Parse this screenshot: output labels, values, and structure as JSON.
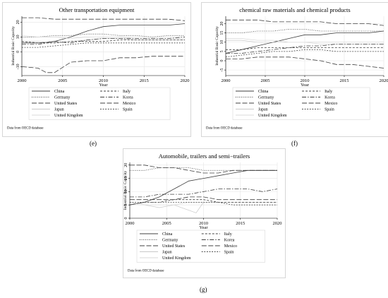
{
  "chart_data": [
    {
      "type": "line",
      "title": "Other transportation equipment",
      "xlabel": "Year",
      "ylabel": "Industrial Basic Capacity",
      "xlim": [
        2000,
        2020
      ],
      "ylim": [
        -16,
        24
      ],
      "xticks": [
        2000,
        2005,
        2010,
        2015,
        2020
      ],
      "yticks": [
        -10,
        0,
        10,
        20
      ],
      "grid": true,
      "legend_position": "bottom",
      "source_note": "Data from OECD database",
      "panel_label": "(e)",
      "series": [
        {
          "name": "China",
          "style": "solid",
          "color": "#404040",
          "x": [
            2000,
            2002,
            2004,
            2006,
            2008,
            2010,
            2012,
            2014,
            2016,
            2018,
            2020
          ],
          "y": [
            6,
            6,
            7,
            10,
            14,
            17,
            18,
            18,
            18,
            18,
            19
          ]
        },
        {
          "name": "Germany",
          "style": "dotted",
          "color": "#404040",
          "x": [
            2000,
            2002,
            2004,
            2006,
            2008,
            2010,
            2012,
            2014,
            2016,
            2018,
            2020
          ],
          "y": [
            10,
            10,
            11,
            11,
            12,
            12,
            11,
            11,
            10,
            11,
            11
          ]
        },
        {
          "name": "United States",
          "style": "longdash",
          "color": "#404040",
          "x": [
            2000,
            2002,
            2004,
            2006,
            2008,
            2010,
            2012,
            2014,
            2016,
            2018,
            2020
          ],
          "y": [
            23,
            23,
            22,
            22,
            22,
            22,
            22,
            22,
            22,
            22,
            21
          ]
        },
        {
          "name": "Japan",
          "style": "solid",
          "color": "#c8c8c8",
          "x": [
            2000,
            2002,
            2004,
            2006,
            2008,
            2010,
            2012,
            2014,
            2016,
            2018,
            2020
          ],
          "y": [
            7,
            7,
            6,
            7,
            8,
            9,
            9,
            8,
            8,
            8,
            8
          ]
        },
        {
          "name": "United Kingdom",
          "style": "solid",
          "color": "#d8d8d8",
          "x": [
            2000,
            2002,
            2004,
            2006,
            2008,
            2010,
            2012,
            2014,
            2016,
            2018,
            2020
          ],
          "y": [
            11,
            10,
            10,
            9,
            10,
            10,
            10,
            9,
            9,
            9,
            9
          ]
        },
        {
          "name": "Italy",
          "style": "dashed",
          "color": "#404040",
          "x": [
            2000,
            2002,
            2004,
            2006,
            2008,
            2010,
            2012,
            2014,
            2016,
            2018,
            2020
          ],
          "y": [
            7,
            6,
            6,
            7,
            7,
            7,
            8,
            8,
            8,
            8,
            8
          ]
        },
        {
          "name": "Korea",
          "style": "dashdot",
          "color": "#404040",
          "x": [
            2000,
            2002,
            2004,
            2006,
            2008,
            2010,
            2012,
            2014,
            2016,
            2018,
            2020
          ],
          "y": [
            5,
            5,
            7,
            6,
            8,
            9,
            9,
            9,
            9,
            9,
            10
          ]
        },
        {
          "name": "Mexico",
          "style": "longdash",
          "color": "#404040",
          "x": [
            2000,
            2002,
            2003,
            2004,
            2006,
            2008,
            2010,
            2012,
            2014,
            2016,
            2018,
            2020
          ],
          "y": [
            -10,
            -11,
            -14,
            -14,
            -7,
            -6,
            -6,
            -4,
            -4,
            -3,
            -3,
            -3
          ]
        },
        {
          "name": "Spain",
          "style": "shortdash",
          "color": "#404040",
          "x": [
            2000,
            2002,
            2004,
            2006,
            2008,
            2010,
            2012,
            2014,
            2016,
            2018,
            2020
          ],
          "y": [
            3,
            3,
            4,
            5,
            6,
            6,
            6,
            6,
            6,
            6,
            6
          ]
        }
      ]
    },
    {
      "type": "line",
      "title": "chemical raw materials and chemical products",
      "xlabel": "Year",
      "ylabel": "Industrial Basic Capacity",
      "xlim": [
        2000,
        2020
      ],
      "ylim": [
        -8,
        24
      ],
      "xticks": [
        2000,
        2005,
        2010,
        2015,
        2020
      ],
      "yticks": [
        -5,
        0,
        5,
        10,
        15,
        20
      ],
      "grid": true,
      "legend_position": "bottom",
      "source_note": "Data from OECD database",
      "panel_label": "(f)",
      "series": [
        {
          "name": "China",
          "style": "solid",
          "color": "#404040",
          "x": [
            2000,
            2002,
            2004,
            2006,
            2008,
            2010,
            2012,
            2014,
            2016,
            2018,
            2020
          ],
          "y": [
            4,
            6,
            8,
            10,
            12,
            14,
            14,
            15,
            15,
            15,
            16
          ]
        },
        {
          "name": "Germany",
          "style": "dotted",
          "color": "#404040",
          "x": [
            2000,
            2002,
            2004,
            2006,
            2008,
            2010,
            2012,
            2014,
            2016,
            2018,
            2020
          ],
          "y": [
            15,
            15,
            16,
            16,
            17,
            17,
            16,
            16,
            16,
            16,
            16
          ]
        },
        {
          "name": "United States",
          "style": "longdash",
          "color": "#404040",
          "x": [
            2000,
            2002,
            2004,
            2006,
            2008,
            2010,
            2012,
            2014,
            2016,
            2018,
            2020
          ],
          "y": [
            22,
            22,
            22,
            21,
            21,
            21,
            21,
            20,
            20,
            20,
            19
          ]
        },
        {
          "name": "Japan",
          "style": "solid",
          "color": "#c8c8c8",
          "x": [
            2000,
            2002,
            2004,
            2006,
            2008,
            2010,
            2012,
            2014,
            2016,
            2018,
            2020
          ],
          "y": [
            11,
            11,
            10,
            10,
            10,
            10,
            10,
            10,
            10,
            10,
            10
          ]
        },
        {
          "name": "United Kingdom",
          "style": "solid",
          "color": "#d8d8d8",
          "x": [
            2000,
            2002,
            2004,
            2006,
            2008,
            2010,
            2012,
            2014,
            2016,
            2018,
            2020
          ],
          "y": [
            12,
            12,
            11,
            11,
            10,
            10,
            9,
            9,
            9,
            9,
            9
          ]
        },
        {
          "name": "Italy",
          "style": "dashed",
          "color": "#404040",
          "x": [
            2000,
            2002,
            2004,
            2006,
            2008,
            2010,
            2012,
            2014,
            2016,
            2018,
            2020
          ],
          "y": [
            6,
            6,
            7,
            7,
            7,
            7,
            7,
            7,
            7,
            7,
            7
          ]
        },
        {
          "name": "Korea",
          "style": "dashdot",
          "color": "#404040",
          "x": [
            2000,
            2002,
            2004,
            2006,
            2008,
            2010,
            2012,
            2014,
            2016,
            2018,
            2020
          ],
          "y": [
            4,
            4,
            5,
            6,
            7,
            8,
            8,
            9,
            9,
            9,
            9
          ]
        },
        {
          "name": "Mexico",
          "style": "longdash",
          "color": "#404040",
          "x": [
            2000,
            2002,
            2004,
            2006,
            2008,
            2010,
            2012,
            2014,
            2016,
            2018,
            2020
          ],
          "y": [
            1,
            1,
            2,
            2,
            2,
            1,
            0,
            -2,
            -2,
            -3,
            -4
          ]
        },
        {
          "name": "Spain",
          "style": "shortdash",
          "color": "#404040",
          "x": [
            2000,
            2002,
            2004,
            2006,
            2008,
            2010,
            2012,
            2014,
            2016,
            2018,
            2020
          ],
          "y": [
            2,
            3,
            4,
            5,
            5,
            6,
            6,
            5,
            5,
            5,
            5
          ]
        }
      ]
    },
    {
      "type": "line",
      "title": "Automobile, trailers and semi−trailers",
      "xlabel": "Year",
      "ylabel": "Industrial Basic Capacity",
      "xlim": [
        2000,
        2020
      ],
      "ylim": [
        0,
        21
      ],
      "xticks": [
        2000,
        2005,
        2010,
        2015,
        2020
      ],
      "yticks": [
        0,
        5,
        10,
        15,
        20
      ],
      "grid": true,
      "legend_position": "bottom",
      "source_note": "Data from OECD database",
      "panel_label": "(g)",
      "series": [
        {
          "name": "China",
          "style": "solid",
          "color": "#404040",
          "x": [
            2000,
            2002,
            2004,
            2006,
            2008,
            2010,
            2012,
            2014,
            2016,
            2018,
            2020
          ],
          "y": [
            5,
            6,
            8,
            11,
            14,
            15,
            16,
            17,
            18,
            18,
            18
          ]
        },
        {
          "name": "Germany",
          "style": "dotted",
          "color": "#404040",
          "x": [
            2000,
            2002,
            2004,
            2006,
            2008,
            2010,
            2012,
            2014,
            2016,
            2018,
            2020
          ],
          "y": [
            18,
            18,
            19,
            19,
            19,
            18,
            18,
            18,
            18,
            18,
            18
          ]
        },
        {
          "name": "United States",
          "style": "longdash",
          "color": "#404040",
          "x": [
            2000,
            2002,
            2004,
            2006,
            2008,
            2010,
            2012,
            2014,
            2016,
            2018,
            2020
          ],
          "y": [
            20,
            20,
            19,
            19,
            18,
            17,
            17,
            18,
            18,
            18,
            18
          ]
        },
        {
          "name": "Japan",
          "style": "solid",
          "color": "#c8c8c8",
          "x": [
            2000,
            2002,
            2004,
            2006,
            2008,
            2009,
            2010,
            2012,
            2014,
            2016,
            2018,
            2020
          ],
          "y": [
            6,
            5,
            4,
            5,
            3,
            2,
            6,
            6,
            6,
            6,
            6,
            6
          ]
        },
        {
          "name": "United Kingdom",
          "style": "solid",
          "color": "#d8d8d8",
          "x": [
            2000,
            2002,
            2004,
            2006,
            2008,
            2010,
            2012,
            2014,
            2016,
            2018,
            2020
          ],
          "y": [
            6,
            5,
            5,
            5,
            6,
            6,
            6,
            6,
            6,
            6,
            6
          ]
        },
        {
          "name": "Italy",
          "style": "dashed",
          "color": "#404040",
          "x": [
            2000,
            2002,
            2004,
            2006,
            2008,
            2010,
            2012,
            2014,
            2016,
            2018,
            2020
          ],
          "y": [
            5,
            6,
            6,
            7,
            7,
            7,
            6,
            6,
            6,
            6,
            6
          ]
        },
        {
          "name": "Korea",
          "style": "dashdot",
          "color": "#404040",
          "x": [
            2000,
            2002,
            2004,
            2006,
            2008,
            2010,
            2012,
            2014,
            2016,
            2018,
            2020
          ],
          "y": [
            8,
            8,
            9,
            9,
            9,
            10,
            11,
            11,
            11,
            10,
            11
          ]
        },
        {
          "name": "Mexico",
          "style": "longdash",
          "color": "#404040",
          "x": [
            2000,
            2002,
            2004,
            2006,
            2008,
            2010,
            2012,
            2014,
            2016,
            2018,
            2020
          ],
          "y": [
            7,
            7,
            7,
            7,
            8,
            8,
            7,
            7,
            7,
            7,
            7
          ]
        },
        {
          "name": "Spain",
          "style": "shortdash",
          "color": "#404040",
          "x": [
            2000,
            2002,
            2004,
            2006,
            2008,
            2010,
            2012,
            2014,
            2016,
            2018,
            2020
          ],
          "y": [
            6,
            6,
            6,
            6,
            6,
            6,
            6,
            5,
            5,
            5,
            5
          ]
        }
      ]
    }
  ]
}
